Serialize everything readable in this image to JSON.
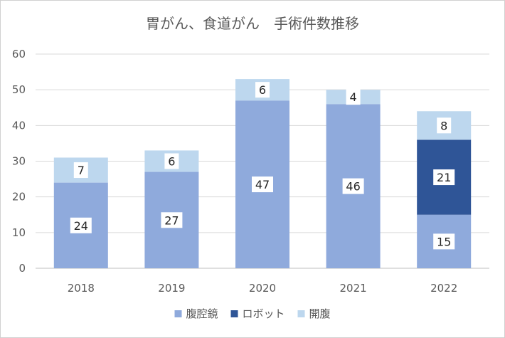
{
  "chart_data": {
    "type": "bar",
    "stacked": true,
    "title": "胃がん、食道がん　手術件数推移",
    "xlabel": "",
    "ylabel": "",
    "categories": [
      "2018",
      "2019",
      "2020",
      "2021",
      "2022"
    ],
    "ylim": [
      0,
      60
    ],
    "yticks": [
      0,
      10,
      20,
      30,
      40,
      50,
      60
    ],
    "grid": true,
    "legend_position": "bottom",
    "series": [
      {
        "name": "腹腔鏡",
        "color": "#8faadc",
        "values": [
          24,
          27,
          47,
          46,
          15
        ]
      },
      {
        "name": "ロボット",
        "color": "#2f5597",
        "values": [
          0,
          0,
          0,
          0,
          21
        ]
      },
      {
        "name": "開腹",
        "color": "#bdd7ee",
        "values": [
          7,
          6,
          6,
          4,
          8
        ]
      }
    ]
  }
}
